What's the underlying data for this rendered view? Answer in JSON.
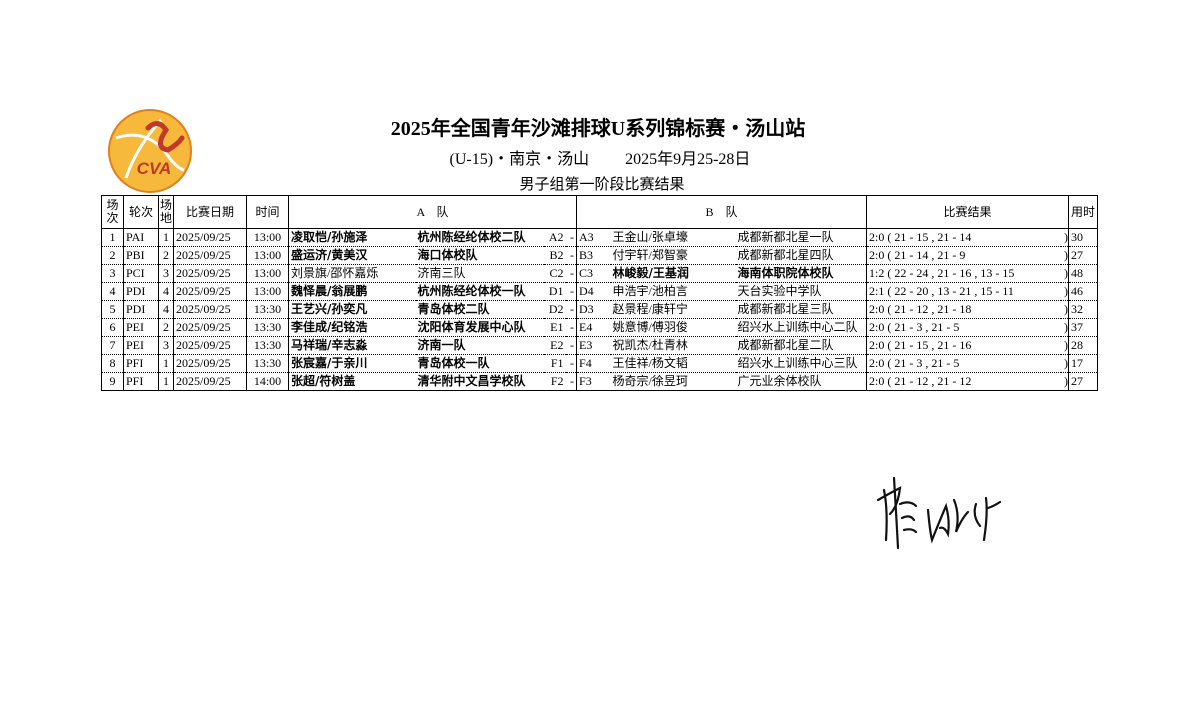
{
  "logo": {
    "text": "CVA"
  },
  "header": {
    "title": "2025年全国青年沙滩排球U系列锦标赛・汤山站",
    "subtitle": "(U-15)・南京・汤山",
    "dates": "2025年9月25-28日",
    "stage": "男子组第一阶段比赛结果"
  },
  "table": {
    "columns": [
      "场次",
      "轮次",
      "场地",
      "比赛日期",
      "时间",
      "A　队",
      "B　队",
      "比赛结果",
      "用时"
    ],
    "rows": [
      {
        "bold": "A",
        "cells": [
          "1",
          "PAI",
          "1",
          "2025/09/25",
          "13:00",
          "凌取恺/孙施泽",
          "杭州陈经纶体校二队",
          "A2",
          "-",
          "A3",
          "王金山/张卓壕",
          "成都新都北星一队",
          "2:0 ( 21 - 15 , 21 - 14",
          ")",
          "30"
        ]
      },
      {
        "bold": "A",
        "cells": [
          "2",
          "PBI",
          "2",
          "2025/09/25",
          "13:00",
          "盛运济/黄美汉",
          "海口体校队",
          "B2",
          "-",
          "B3",
          "付宇轩/郑智豪",
          "成都新都北星四队",
          "2:0 ( 21 - 14 , 21 - 9",
          ")",
          "27"
        ]
      },
      {
        "bold": "B",
        "cells": [
          "3",
          "PCI",
          "3",
          "2025/09/25",
          "13:00",
          "刘景旗/邵怀嘉烁",
          "济南三队",
          "C2",
          "-",
          "C3",
          "林峻毅/王基润",
          "海南体职院体校队",
          "1:2 ( 22 - 24 , 21 - 16 , 13 - 15",
          ")",
          "48"
        ]
      },
      {
        "bold": "A",
        "cells": [
          "4",
          "PDI",
          "4",
          "2025/09/25",
          "13:00",
          "魏怿晨/翁展鹏",
          "杭州陈经纶体校一队",
          "D1",
          "-",
          "D4",
          "申浩宇/池柏言",
          "天台实验中学队",
          "2:1 ( 22 - 20 , 13 - 21 , 15 - 11",
          ")",
          "46"
        ]
      },
      {
        "bold": "A",
        "cells": [
          "5",
          "PDI",
          "4",
          "2025/09/25",
          "13:30",
          "王艺兴/孙奕凡",
          "青岛体校二队",
          "D2",
          "-",
          "D3",
          "赵景程/康轩宁",
          "成都新都北星三队",
          "2:0 ( 21 - 12 , 21 - 18",
          ")",
          "32"
        ]
      },
      {
        "bold": "A",
        "cells": [
          "6",
          "PEI",
          "2",
          "2025/09/25",
          "13:30",
          "李佳成/纪铭浩",
          "沈阳体育发展中心队",
          "E1",
          "-",
          "E4",
          "姚意博/傅羽俊",
          "绍兴水上训练中心二队",
          "2:0 ( 21 - 3 , 21 - 5",
          ")",
          "37"
        ]
      },
      {
        "bold": "A",
        "cells": [
          "7",
          "PEI",
          "3",
          "2025/09/25",
          "13:30",
          "马祥瑞/辛志淼",
          "济南一队",
          "E2",
          "-",
          "E3",
          "祝凯杰/杜青林",
          "成都新都北星二队",
          "2:0 ( 21 - 15 , 21 - 16",
          ")",
          "28"
        ]
      },
      {
        "bold": "A",
        "cells": [
          "8",
          "PFI",
          "1",
          "2025/09/25",
          "13:30",
          "张宸嘉/于亲川",
          "青岛体校一队",
          "F1",
          "-",
          "F4",
          "王佳祥/杨文韬",
          "绍兴水上训练中心三队",
          "2:0 ( 21 - 3 , 21 - 5",
          ")",
          "17"
        ]
      },
      {
        "bold": "A",
        "cells": [
          "9",
          "PFI",
          "1",
          "2025/09/25",
          "14:00",
          "张超/符树盖",
          "清华附中文昌学校队",
          "F2",
          "-",
          "F3",
          "杨奇宗/徐昱珂",
          "广元业余体校队",
          "2:0 ( 21 - 12 , 21 - 12",
          ")",
          "27"
        ]
      }
    ]
  }
}
